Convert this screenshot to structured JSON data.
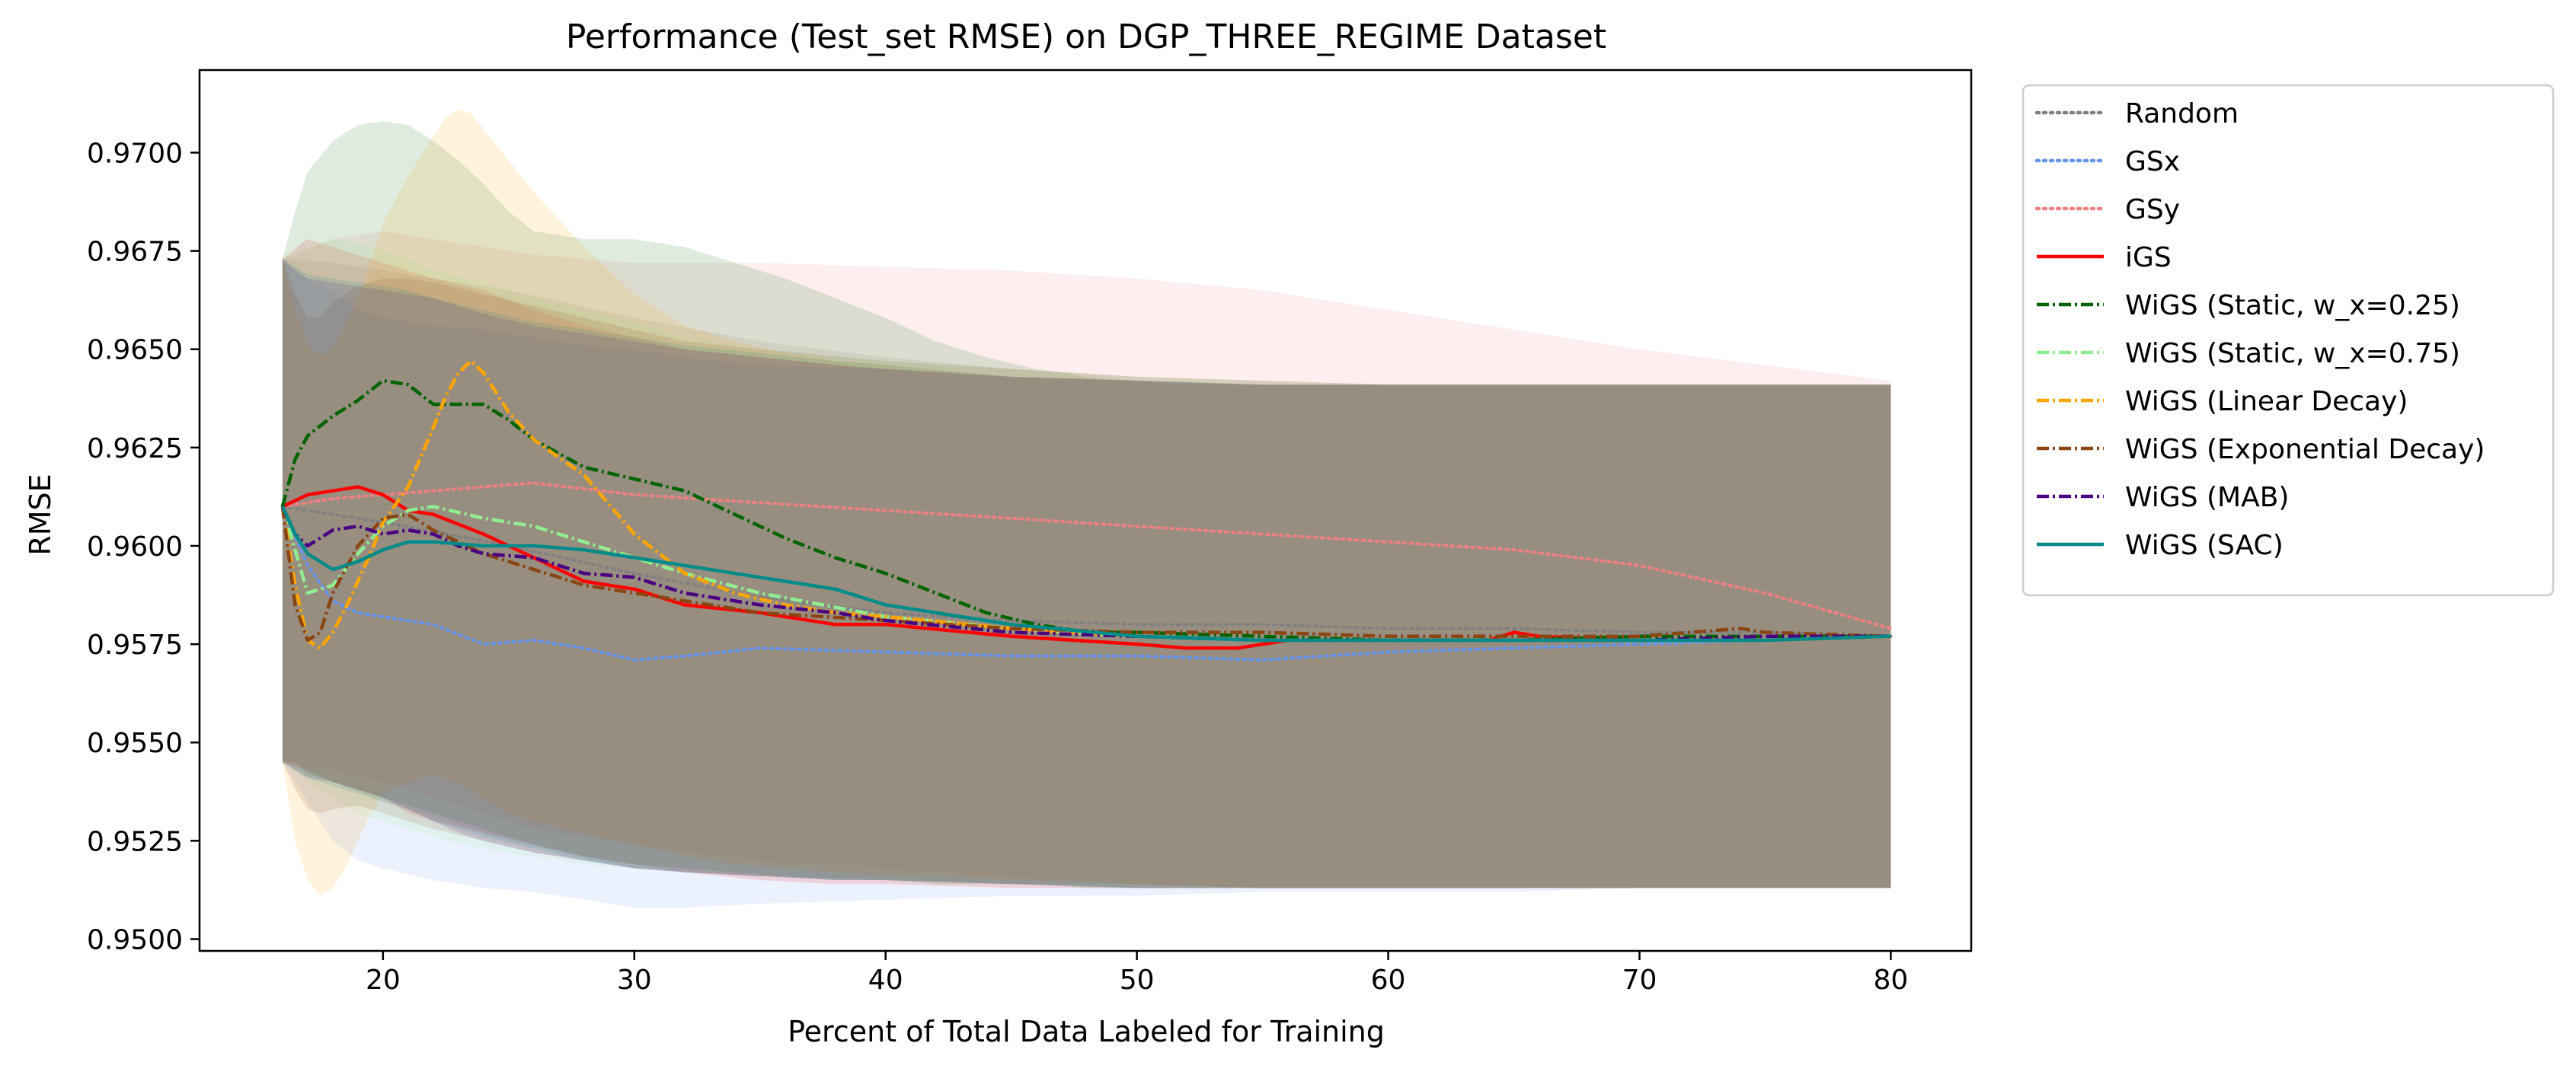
{
  "chart_data": {
    "type": "line",
    "title": "Performance (Test_set RMSE) on DGP_THREE_REGIME Dataset",
    "xlabel": "Percent of Total Data Labeled for Training",
    "ylabel": "RMSE",
    "xlim": [
      12.7,
      83.2
    ],
    "ylim": [
      0.9497,
      0.9721
    ],
    "xticks": [
      20,
      30,
      40,
      50,
      60,
      70,
      80
    ],
    "xtick_labels": [
      "20",
      "30",
      "40",
      "50",
      "60",
      "70",
      "80"
    ],
    "yticks": [
      0.95,
      0.9525,
      0.955,
      0.9575,
      0.96,
      0.9625,
      0.965,
      0.9675,
      0.97
    ],
    "ytick_labels": [
      "0.9500",
      "0.9525",
      "0.9550",
      "0.9575",
      "0.9600",
      "0.9625",
      "0.9650",
      "0.9675",
      "0.9700"
    ],
    "grid": false,
    "legend_position": "outside-right-top",
    "series": [
      {
        "name": "Random",
        "color": "#808080",
        "style": "dotted",
        "x": [
          16,
          18,
          20,
          25,
          30,
          35,
          40,
          45,
          50,
          55,
          60,
          65,
          70,
          75,
          80
        ],
        "values": [
          0.961,
          0.9608,
          0.9606,
          0.96,
          0.9593,
          0.9587,
          0.9583,
          0.9581,
          0.958,
          0.958,
          0.9579,
          0.9579,
          0.9578,
          0.9578,
          0.9577
        ],
        "band_low": [
          0.9545,
          0.954,
          0.9535,
          0.9525,
          0.9518,
          0.9516,
          0.9515,
          0.9514,
          0.9514,
          0.9513,
          0.9513,
          0.9513,
          0.9513,
          0.9513,
          0.9513
        ],
        "band_high": [
          0.9673,
          0.9672,
          0.967,
          0.9665,
          0.9658,
          0.9652,
          0.9648,
          0.9645,
          0.9643,
          0.9642,
          0.9641,
          0.9641,
          0.9641,
          0.9641,
          0.9641
        ]
      },
      {
        "name": "GSx",
        "color": "#6495ED",
        "style": "dotted",
        "x": [
          16,
          17,
          18,
          19,
          20,
          22,
          24,
          26,
          28,
          30,
          32,
          35,
          40,
          45,
          50,
          55,
          60,
          65,
          70,
          75,
          80
        ],
        "values": [
          0.961,
          0.9595,
          0.9586,
          0.9583,
          0.9582,
          0.958,
          0.9575,
          0.9576,
          0.9574,
          0.9571,
          0.9572,
          0.9574,
          0.9573,
          0.9572,
          0.9572,
          0.9571,
          0.9573,
          0.9574,
          0.9575,
          0.9576,
          0.9577
        ],
        "band_low": [
          0.9545,
          0.9535,
          0.9525,
          0.952,
          0.9518,
          0.9515,
          0.9513,
          0.9512,
          0.951,
          0.9508,
          0.9508,
          0.9509,
          0.951,
          0.9511,
          0.9511,
          0.9512,
          0.9512,
          0.9512,
          0.9513,
          0.9513,
          0.9513
        ],
        "band_high": [
          0.9673,
          0.9668,
          0.9665,
          0.966,
          0.9658,
          0.9656,
          0.9655,
          0.9653,
          0.9651,
          0.965,
          0.9648,
          0.9646,
          0.9645,
          0.9643,
          0.9642,
          0.9641,
          0.9641,
          0.9641,
          0.9641,
          0.9641,
          0.9641
        ]
      },
      {
        "name": "GSy",
        "color": "#F08080",
        "style": "dotted",
        "x": [
          16,
          18,
          20,
          22,
          24,
          26,
          30,
          35,
          40,
          45,
          50,
          55,
          60,
          65,
          70,
          75,
          80
        ],
        "values": [
          0.961,
          0.9612,
          0.9613,
          0.9614,
          0.9615,
          0.9616,
          0.9613,
          0.9611,
          0.9609,
          0.9607,
          0.9605,
          0.9603,
          0.9601,
          0.9599,
          0.9595,
          0.9588,
          0.9579
        ],
        "band_low": [
          0.9545,
          0.9543,
          0.954,
          0.9536,
          0.9532,
          0.9528,
          0.9524,
          0.952,
          0.9518,
          0.9516,
          0.9514,
          0.9513,
          0.9513,
          0.9513,
          0.9513,
          0.9513,
          0.9513
        ],
        "band_high": [
          0.9673,
          0.9678,
          0.968,
          0.9678,
          0.9676,
          0.9674,
          0.9672,
          0.9672,
          0.9671,
          0.967,
          0.9668,
          0.9665,
          0.966,
          0.9655,
          0.965,
          0.9646,
          0.9642
        ]
      },
      {
        "name": "iGS",
        "color": "#FF0000",
        "style": "solid",
        "x": [
          16,
          17,
          18,
          19,
          20,
          21,
          22,
          24,
          26,
          28,
          30,
          32,
          35,
          38,
          40,
          45,
          50,
          52,
          54,
          56,
          60,
          64,
          65,
          66,
          70,
          75,
          80
        ],
        "values": [
          0.961,
          0.9613,
          0.9614,
          0.9615,
          0.9613,
          0.9609,
          0.9608,
          0.9603,
          0.9597,
          0.9591,
          0.9589,
          0.9585,
          0.9583,
          0.958,
          0.958,
          0.9577,
          0.9575,
          0.9574,
          0.9574,
          0.9576,
          0.9576,
          0.9576,
          0.9578,
          0.9577,
          0.9576,
          0.9576,
          0.9577
        ],
        "band_low": [
          0.9545,
          0.9543,
          0.954,
          0.9538,
          0.9536,
          0.9532,
          0.953,
          0.9527,
          0.9524,
          0.9521,
          0.9519,
          0.9517,
          0.9515,
          0.9514,
          0.9514,
          0.9513,
          0.9513,
          0.9513,
          0.9513,
          0.9513,
          0.9513,
          0.9513,
          0.9513,
          0.9513,
          0.9513,
          0.9513,
          0.9513
        ],
        "band_high": [
          0.9673,
          0.9678,
          0.9676,
          0.9674,
          0.9672,
          0.967,
          0.9668,
          0.9665,
          0.966,
          0.9656,
          0.9653,
          0.965,
          0.9648,
          0.9646,
          0.9645,
          0.9643,
          0.9642,
          0.9641,
          0.9641,
          0.9641,
          0.9641,
          0.9641,
          0.9641,
          0.9641,
          0.9641,
          0.9641,
          0.9641
        ]
      },
      {
        "name": "WiGS (Static, w_x=0.25)",
        "color": "#006400",
        "style": "dashdot",
        "x": [
          16,
          16.5,
          17,
          18,
          19,
          20,
          21,
          22,
          23,
          24,
          25,
          26,
          28,
          30,
          32,
          34,
          36,
          38,
          40,
          42,
          44,
          46,
          48,
          50,
          55,
          60,
          65,
          70,
          75,
          80
        ],
        "values": [
          0.961,
          0.9622,
          0.9628,
          0.9633,
          0.9637,
          0.9642,
          0.9641,
          0.9636,
          0.9636,
          0.9636,
          0.9632,
          0.9627,
          0.962,
          0.9617,
          0.9614,
          0.9608,
          0.9602,
          0.9597,
          0.9593,
          0.9588,
          0.9583,
          0.958,
          0.9578,
          0.9578,
          0.9577,
          0.9576,
          0.9576,
          0.9577,
          0.9577,
          0.9577
        ],
        "band_low": [
          0.9545,
          0.9545,
          0.9542,
          0.954,
          0.9538,
          0.9536,
          0.9534,
          0.9532,
          0.953,
          0.9528,
          0.9526,
          0.9524,
          0.9521,
          0.9519,
          0.9518,
          0.9517,
          0.9516,
          0.9515,
          0.9515,
          0.9514,
          0.9514,
          0.9514,
          0.9513,
          0.9513,
          0.9513,
          0.9513,
          0.9513,
          0.9513,
          0.9513,
          0.9513
        ],
        "band_high": [
          0.9673,
          0.9685,
          0.9695,
          0.9703,
          0.9707,
          0.9708,
          0.9707,
          0.9703,
          0.9698,
          0.9692,
          0.9685,
          0.968,
          0.9678,
          0.9678,
          0.9676,
          0.9672,
          0.9668,
          0.9663,
          0.9658,
          0.9652,
          0.9648,
          0.9645,
          0.9643,
          0.9642,
          0.9641,
          0.9641,
          0.9641,
          0.9641,
          0.9641,
          0.9641
        ]
      },
      {
        "name": "WiGS (Static, w_x=0.75)",
        "color": "#90EE90",
        "style": "dashdot",
        "x": [
          16,
          17,
          18,
          19,
          20,
          21,
          22,
          24,
          26,
          28,
          30,
          32,
          35,
          40,
          45,
          50,
          55,
          60,
          65,
          70,
          75,
          80
        ],
        "values": [
          0.961,
          0.9588,
          0.959,
          0.9598,
          0.9605,
          0.9609,
          0.961,
          0.9607,
          0.9605,
          0.9601,
          0.9597,
          0.9593,
          0.9588,
          0.9582,
          0.9579,
          0.9577,
          0.9576,
          0.9576,
          0.9576,
          0.9576,
          0.9576,
          0.9577
        ],
        "band_low": [
          0.9545,
          0.954,
          0.9536,
          0.9532,
          0.953,
          0.9528,
          0.9526,
          0.9523,
          0.9521,
          0.9519,
          0.9518,
          0.9517,
          0.9516,
          0.9515,
          0.9514,
          0.9513,
          0.9513,
          0.9513,
          0.9513,
          0.9513,
          0.9513,
          0.9513
        ],
        "band_high": [
          0.9673,
          0.9676,
          0.9678,
          0.9677,
          0.9675,
          0.9673,
          0.967,
          0.9667,
          0.9663,
          0.966,
          0.9657,
          0.9653,
          0.965,
          0.9647,
          0.9645,
          0.9643,
          0.9642,
          0.9641,
          0.9641,
          0.9641,
          0.9641,
          0.9641
        ]
      },
      {
        "name": "WiGS (Linear Decay)",
        "color": "#FFA500",
        "style": "dashdot",
        "x": [
          16,
          16.5,
          17,
          17.5,
          18,
          18.5,
          19,
          19.5,
          20,
          21,
          22,
          22.5,
          23,
          23.5,
          24,
          25,
          26,
          28,
          30,
          32,
          34,
          36,
          38,
          40,
          45,
          50,
          55,
          60,
          65,
          70,
          75,
          80
        ],
        "values": [
          0.961,
          0.959,
          0.9576,
          0.9574,
          0.9578,
          0.9584,
          0.9591,
          0.9598,
          0.9606,
          0.9615,
          0.963,
          0.9638,
          0.9644,
          0.9647,
          0.9644,
          0.9634,
          0.9627,
          0.9618,
          0.9603,
          0.9593,
          0.9588,
          0.9585,
          0.9583,
          0.9582,
          0.9579,
          0.9577,
          0.9576,
          0.9576,
          0.9576,
          0.9576,
          0.9576,
          0.9577
        ],
        "band_low": [
          0.9545,
          0.9525,
          0.9515,
          0.9511,
          0.9513,
          0.9518,
          0.9525,
          0.9532,
          0.9537,
          0.954,
          0.9542,
          0.9541,
          0.954,
          0.9538,
          0.9536,
          0.9532,
          0.953,
          0.9527,
          0.9524,
          0.9521,
          0.9519,
          0.9518,
          0.9517,
          0.9516,
          0.9515,
          0.9514,
          0.9513,
          0.9513,
          0.9513,
          0.9513,
          0.9513,
          0.9513
        ],
        "band_high": [
          0.9673,
          0.966,
          0.9651,
          0.9648,
          0.965,
          0.9656,
          0.9663,
          0.9672,
          0.9682,
          0.9694,
          0.9704,
          0.9709,
          0.9711,
          0.971,
          0.9706,
          0.9698,
          0.969,
          0.9676,
          0.9664,
          0.9656,
          0.9652,
          0.9649,
          0.9647,
          0.9646,
          0.9643,
          0.9642,
          0.9641,
          0.9641,
          0.9641,
          0.9641,
          0.9641,
          0.9641
        ]
      },
      {
        "name": "WiGS (Exponential Decay)",
        "color": "#8B4513",
        "style": "dashdot",
        "x": [
          16,
          16.5,
          17,
          17.5,
          18,
          19,
          20,
          21,
          22,
          24,
          26,
          28,
          30,
          32,
          35,
          40,
          45,
          50,
          55,
          60,
          65,
          70,
          72,
          74,
          75,
          80
        ],
        "values": [
          0.961,
          0.9585,
          0.9576,
          0.9578,
          0.9588,
          0.96,
          0.9607,
          0.9608,
          0.9604,
          0.9598,
          0.9594,
          0.959,
          0.9588,
          0.9586,
          0.9583,
          0.9581,
          0.9579,
          0.9578,
          0.9578,
          0.9577,
          0.9577,
          0.9577,
          0.9578,
          0.9579,
          0.9578,
          0.9577
        ],
        "band_low": [
          0.9545,
          0.9538,
          0.9533,
          0.9532,
          0.9533,
          0.9534,
          0.9532,
          0.953,
          0.9528,
          0.9525,
          0.9522,
          0.952,
          0.9518,
          0.9517,
          0.9516,
          0.9515,
          0.9514,
          0.9513,
          0.9513,
          0.9513,
          0.9513,
          0.9513,
          0.9513,
          0.9513,
          0.9513,
          0.9513
        ],
        "band_high": [
          0.9673,
          0.9664,
          0.9658,
          0.9658,
          0.9662,
          0.9666,
          0.9668,
          0.9668,
          0.9667,
          0.9664,
          0.9661,
          0.9658,
          0.9655,
          0.9652,
          0.965,
          0.9647,
          0.9645,
          0.9643,
          0.9642,
          0.9641,
          0.9641,
          0.9641,
          0.9641,
          0.9641,
          0.9641,
          0.9641
        ]
      },
      {
        "name": "WiGS (MAB)",
        "color": "#4B0082",
        "style": "dashdot",
        "x": [
          16,
          16.5,
          17,
          18,
          19,
          20,
          21,
          22,
          23,
          24,
          26,
          28,
          30,
          32,
          35,
          38,
          40,
          45,
          50,
          55,
          60,
          65,
          70,
          75,
          80
        ],
        "values": [
          0.961,
          0.9603,
          0.96,
          0.9604,
          0.9605,
          0.9603,
          0.9604,
          0.9603,
          0.96,
          0.9598,
          0.9597,
          0.9593,
          0.9592,
          0.9588,
          0.9585,
          0.9583,
          0.9581,
          0.9578,
          0.9577,
          0.9576,
          0.9576,
          0.9576,
          0.9576,
          0.9577,
          0.9577
        ],
        "band_low": [
          0.9545,
          0.9543,
          0.9541,
          0.954,
          0.9538,
          0.9536,
          0.9533,
          0.953,
          0.9527,
          0.9525,
          0.9522,
          0.952,
          0.9518,
          0.9517,
          0.9516,
          0.9515,
          0.9515,
          0.9514,
          0.9513,
          0.9513,
          0.9513,
          0.9513,
          0.9513,
          0.9513,
          0.9513
        ],
        "band_high": [
          0.9673,
          0.967,
          0.9668,
          0.9667,
          0.9666,
          0.9665,
          0.9664,
          0.9663,
          0.9661,
          0.9659,
          0.9656,
          0.9654,
          0.9652,
          0.965,
          0.9648,
          0.9646,
          0.9645,
          0.9643,
          0.9642,
          0.9641,
          0.9641,
          0.9641,
          0.9641,
          0.9641,
          0.9641
        ]
      },
      {
        "name": "WiGS (SAC)",
        "color": "#008B8B",
        "style": "solid",
        "x": [
          16,
          16.5,
          17,
          18,
          19,
          20,
          21,
          22,
          24,
          26,
          28,
          30,
          32,
          35,
          38,
          40,
          45,
          50,
          55,
          60,
          65,
          70,
          75,
          80
        ],
        "values": [
          0.961,
          0.9603,
          0.9598,
          0.9594,
          0.9596,
          0.9599,
          0.9601,
          0.9601,
          0.96,
          0.96,
          0.9599,
          0.9597,
          0.9595,
          0.9592,
          0.9589,
          0.9585,
          0.958,
          0.9577,
          0.9576,
          0.9576,
          0.9576,
          0.9576,
          0.9576,
          0.9577
        ],
        "band_low": [
          0.9545,
          0.9543,
          0.9541,
          0.9539,
          0.9537,
          0.9535,
          0.9533,
          0.953,
          0.9526,
          0.9523,
          0.952,
          0.9518,
          0.9517,
          0.9516,
          0.9515,
          0.9515,
          0.9514,
          0.9513,
          0.9513,
          0.9513,
          0.9513,
          0.9513,
          0.9513,
          0.9513
        ],
        "band_high": [
          0.9673,
          0.9671,
          0.9669,
          0.9668,
          0.9667,
          0.9666,
          0.9665,
          0.9663,
          0.966,
          0.9657,
          0.9655,
          0.9653,
          0.9651,
          0.9649,
          0.9647,
          0.9646,
          0.9643,
          0.9642,
          0.9641,
          0.9641,
          0.9641,
          0.9641,
          0.9641,
          0.9641
        ]
      }
    ]
  }
}
